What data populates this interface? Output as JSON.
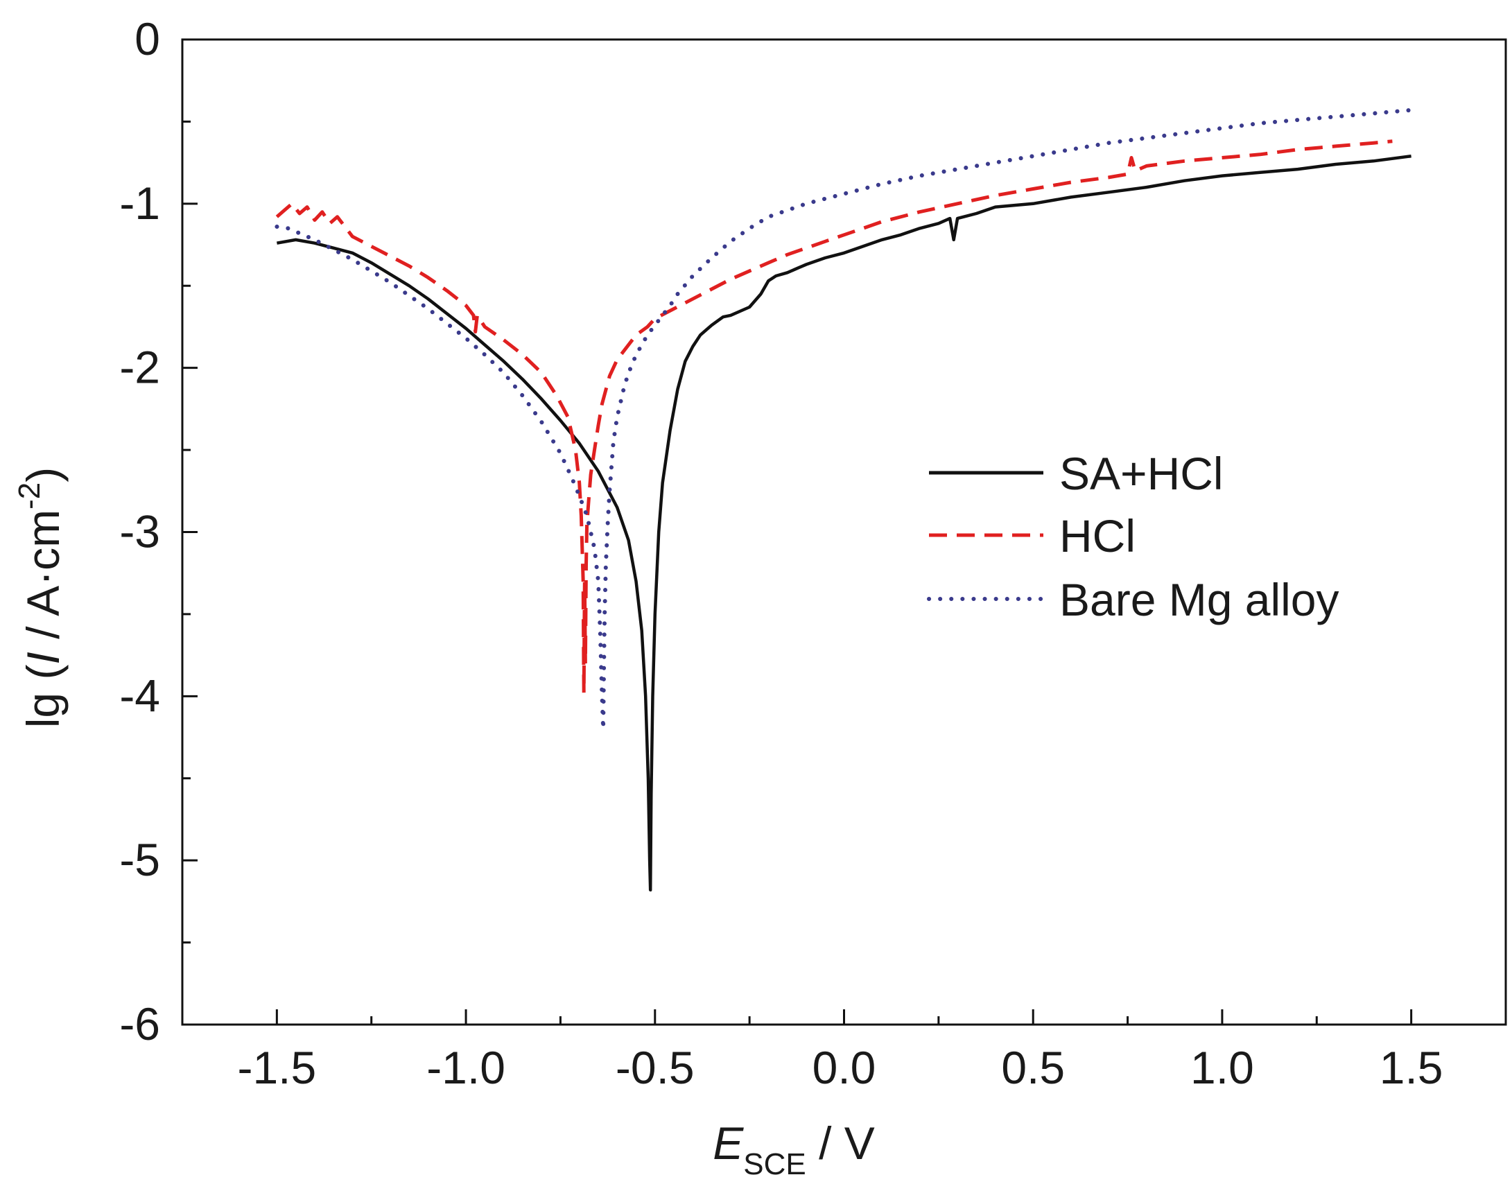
{
  "chart_data": {
    "type": "line",
    "xlabel_main": "E",
    "xlabel_sub": "SCE",
    "xlabel_unit": " / V",
    "ylabel_pre": "lg (",
    "ylabel_italic": "I",
    "ylabel_mid": " / A·cm",
    "ylabel_sup": "-2",
    "ylabel_post": ")",
    "xlim": [
      -1.75,
      1.75
    ],
    "ylim": [
      -6,
      0
    ],
    "x_ticks": [
      {
        "value": -1.5,
        "label": "-1.5"
      },
      {
        "value": -1.0,
        "label": "-1.0"
      },
      {
        "value": -0.5,
        "label": "-0.5"
      },
      {
        "value": 0.0,
        "label": "0.0"
      },
      {
        "value": 0.5,
        "label": "0.5"
      },
      {
        "value": 1.0,
        "label": "1.0"
      },
      {
        "value": 1.5,
        "label": "1.5"
      }
    ],
    "x_minor_ticks": [
      -1.25,
      -0.75,
      -0.25,
      0.25,
      0.75,
      1.25
    ],
    "y_ticks": [
      {
        "value": 0,
        "label": "0"
      },
      {
        "value": -1,
        "label": "-1"
      },
      {
        "value": -2,
        "label": "-2"
      },
      {
        "value": -3,
        "label": "-3"
      },
      {
        "value": -4,
        "label": "-4"
      },
      {
        "value": -5,
        "label": "-5"
      },
      {
        "value": -6,
        "label": "-6"
      }
    ],
    "y_minor_ticks": [
      -0.5,
      -1.5,
      -2.5,
      -3.5,
      -4.5,
      -5.5
    ],
    "legend_position": "right",
    "series": [
      {
        "name": "SA+HCl",
        "color": "#111111",
        "style": "solid",
        "x": [
          -1.5,
          -1.45,
          -1.4,
          -1.35,
          -1.3,
          -1.25,
          -1.2,
          -1.15,
          -1.1,
          -1.05,
          -1.0,
          -0.95,
          -0.9,
          -0.85,
          -0.8,
          -0.75,
          -0.7,
          -0.65,
          -0.6,
          -0.57,
          -0.55,
          -0.535,
          -0.525,
          -0.518,
          -0.514,
          -0.512,
          -0.51,
          -0.506,
          -0.5,
          -0.49,
          -0.48,
          -0.46,
          -0.44,
          -0.42,
          -0.4,
          -0.38,
          -0.35,
          -0.32,
          -0.3,
          -0.25,
          -0.22,
          -0.2,
          -0.18,
          -0.15,
          -0.12,
          -0.1,
          -0.05,
          0.0,
          0.05,
          0.1,
          0.15,
          0.2,
          0.25,
          0.28,
          0.29,
          0.3,
          0.35,
          0.4,
          0.5,
          0.6,
          0.7,
          0.8,
          0.9,
          1.0,
          1.1,
          1.2,
          1.3,
          1.4,
          1.5
        ],
        "y": [
          -1.24,
          -1.22,
          -1.24,
          -1.27,
          -1.3,
          -1.36,
          -1.43,
          -1.5,
          -1.58,
          -1.67,
          -1.76,
          -1.86,
          -1.96,
          -2.07,
          -2.19,
          -2.32,
          -2.46,
          -2.63,
          -2.85,
          -3.05,
          -3.3,
          -3.6,
          -4.0,
          -4.5,
          -5.0,
          -5.18,
          -4.6,
          -4.0,
          -3.5,
          -3.0,
          -2.7,
          -2.38,
          -2.13,
          -1.96,
          -1.87,
          -1.8,
          -1.74,
          -1.69,
          -1.68,
          -1.63,
          -1.55,
          -1.47,
          -1.44,
          -1.42,
          -1.39,
          -1.37,
          -1.33,
          -1.3,
          -1.26,
          -1.22,
          -1.19,
          -1.15,
          -1.12,
          -1.09,
          -1.22,
          -1.09,
          -1.06,
          -1.02,
          -1.0,
          -0.96,
          -0.93,
          -0.9,
          -0.86,
          -0.83,
          -0.81,
          -0.79,
          -0.76,
          -0.74,
          -0.71
        ]
      },
      {
        "name": "HCl",
        "color": "#e02020",
        "style": "dashed",
        "x": [
          -1.5,
          -1.48,
          -1.46,
          -1.44,
          -1.42,
          -1.4,
          -1.38,
          -1.36,
          -1.34,
          -1.3,
          -1.25,
          -1.2,
          -1.15,
          -1.1,
          -1.05,
          -1.0,
          -0.98,
          -0.975,
          -0.97,
          -0.95,
          -0.9,
          -0.85,
          -0.8,
          -0.76,
          -0.73,
          -0.71,
          -0.7,
          -0.695,
          -0.69,
          -0.688,
          -0.686,
          -0.684,
          -0.682,
          -0.68,
          -0.675,
          -0.67,
          -0.66,
          -0.65,
          -0.64,
          -0.62,
          -0.6,
          -0.57,
          -0.55,
          -0.52,
          -0.5,
          -0.45,
          -0.4,
          -0.35,
          -0.3,
          -0.25,
          -0.2,
          -0.15,
          -0.1,
          -0.05,
          0.0,
          0.05,
          0.1,
          0.2,
          0.3,
          0.4,
          0.5,
          0.6,
          0.7,
          0.75,
          0.76,
          0.77,
          0.8,
          0.9,
          1.0,
          1.1,
          1.2,
          1.3,
          1.4,
          1.45
        ],
        "y": [
          -1.08,
          -1.04,
          -1.0,
          -1.06,
          -1.02,
          -1.1,
          -1.05,
          -1.12,
          -1.08,
          -1.2,
          -1.26,
          -1.32,
          -1.38,
          -1.45,
          -1.53,
          -1.62,
          -1.68,
          -1.78,
          -1.68,
          -1.75,
          -1.83,
          -1.92,
          -2.03,
          -2.17,
          -2.3,
          -2.5,
          -2.7,
          -2.9,
          -3.3,
          -3.98,
          -3.3,
          -3.8,
          -3.2,
          -2.95,
          -2.8,
          -2.65,
          -2.5,
          -2.35,
          -2.22,
          -2.05,
          -1.95,
          -1.86,
          -1.8,
          -1.75,
          -1.7,
          -1.64,
          -1.58,
          -1.52,
          -1.46,
          -1.41,
          -1.36,
          -1.31,
          -1.27,
          -1.23,
          -1.19,
          -1.15,
          -1.11,
          -1.05,
          -1.0,
          -0.95,
          -0.91,
          -0.87,
          -0.84,
          -0.82,
          -0.72,
          -0.8,
          -0.77,
          -0.74,
          -0.72,
          -0.7,
          -0.67,
          -0.65,
          -0.63,
          -0.62
        ]
      },
      {
        "name": "Bare Mg alloy",
        "color": "#3a3a8c",
        "style": "dotted",
        "x": [
          -1.5,
          -1.47,
          -1.44,
          -1.4,
          -1.35,
          -1.3,
          -1.25,
          -1.2,
          -1.15,
          -1.1,
          -1.05,
          -1.0,
          -0.95,
          -0.9,
          -0.85,
          -0.8,
          -0.75,
          -0.72,
          -0.7,
          -0.68,
          -0.66,
          -0.65,
          -0.645,
          -0.64,
          -0.637,
          -0.635,
          -0.633,
          -0.63,
          -0.625,
          -0.62,
          -0.615,
          -0.61,
          -0.6,
          -0.58,
          -0.56,
          -0.54,
          -0.52,
          -0.5,
          -0.48,
          -0.46,
          -0.44,
          -0.4,
          -0.35,
          -0.3,
          -0.25,
          -0.2,
          -0.1,
          0.0,
          0.1,
          0.2,
          0.3,
          0.4,
          0.5,
          0.6,
          0.7,
          0.8,
          0.9,
          1.0,
          1.1,
          1.2,
          1.3,
          1.4,
          1.5
        ],
        "y": [
          -1.14,
          -1.15,
          -1.18,
          -1.22,
          -1.28,
          -1.34,
          -1.41,
          -1.48,
          -1.56,
          -1.64,
          -1.73,
          -1.82,
          -1.92,
          -2.03,
          -2.17,
          -2.33,
          -2.52,
          -2.67,
          -2.78,
          -2.9,
          -3.1,
          -3.3,
          -3.6,
          -4.0,
          -4.2,
          -3.8,
          -3.5,
          -3.2,
          -2.95,
          -2.75,
          -2.6,
          -2.45,
          -2.3,
          -2.1,
          -1.97,
          -1.88,
          -1.8,
          -1.74,
          -1.68,
          -1.62,
          -1.55,
          -1.44,
          -1.33,
          -1.23,
          -1.15,
          -1.08,
          -1.0,
          -0.94,
          -0.88,
          -0.83,
          -0.79,
          -0.75,
          -0.71,
          -0.67,
          -0.63,
          -0.6,
          -0.57,
          -0.54,
          -0.51,
          -0.49,
          -0.47,
          -0.45,
          -0.43
        ]
      }
    ]
  }
}
